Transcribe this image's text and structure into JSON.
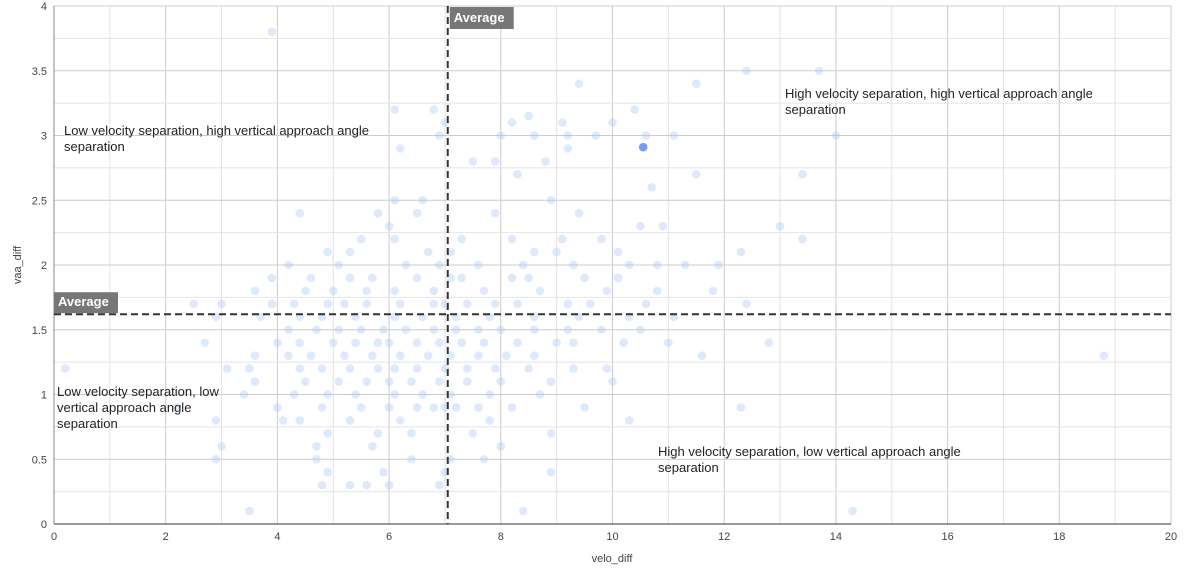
{
  "chart_data": {
    "type": "scatter",
    "xlabel": "velo_diff",
    "ylabel": "vaa_diff",
    "xlim": [
      0,
      20
    ],
    "ylim": [
      0,
      4
    ],
    "x_ticks": [
      "0",
      "2",
      "4",
      "6",
      "8",
      "10",
      "12",
      "14",
      "16",
      "18",
      "20"
    ],
    "y_ticks": [
      "0",
      "0.5",
      "1",
      "1.5",
      "2",
      "2.5",
      "3",
      "3.5",
      "4"
    ],
    "grid": true,
    "colors": {
      "point": "#a8c8f8",
      "highlight": "#5b8def",
      "average_line": "#333333",
      "average_label_bg": "#777777"
    },
    "averages": {
      "x": 7.05,
      "y": 1.62,
      "label": "Average"
    },
    "quadrant_labels": {
      "top_left": [
        "Low velocity separation, high vertical approach angle",
        "separation"
      ],
      "top_right": [
        "High velocity separation, high vertical approach angle",
        "separation"
      ],
      "bottom_left": [
        "Low velocity separation, low",
        "vertical approach angle",
        "separation"
      ],
      "bottom_right": [
        "High velocity separation, low vertical approach angle",
        "separation"
      ]
    },
    "highlight_point": [
      10.55,
      2.91
    ],
    "points": [
      [
        3.9,
        3.8
      ],
      [
        12.4,
        3.5
      ],
      [
        13.7,
        3.5
      ],
      [
        9.4,
        3.4
      ],
      [
        11.5,
        3.4
      ],
      [
        6.1,
        3.2
      ],
      [
        6.8,
        3.2
      ],
      [
        8.5,
        3.15
      ],
      [
        10.4,
        3.2
      ],
      [
        8.2,
        3.1
      ],
      [
        9.1,
        3.1
      ],
      [
        10.0,
        3.1
      ],
      [
        7.0,
        3.1
      ],
      [
        6.9,
        3.0
      ],
      [
        8.0,
        3.0
      ],
      [
        8.6,
        3.0
      ],
      [
        9.2,
        3.0
      ],
      [
        9.7,
        3.0
      ],
      [
        10.6,
        3.0
      ],
      [
        11.1,
        3.0
      ],
      [
        14.0,
        3.0
      ],
      [
        6.2,
        2.9
      ],
      [
        7.9,
        2.8
      ],
      [
        7.5,
        2.8
      ],
      [
        8.8,
        2.8
      ],
      [
        9.2,
        2.9
      ],
      [
        8.3,
        2.7
      ],
      [
        10.7,
        2.6
      ],
      [
        11.5,
        2.7
      ],
      [
        13.4,
        2.7
      ],
      [
        6.6,
        2.5
      ],
      [
        8.9,
        2.5
      ],
      [
        6.1,
        2.5
      ],
      [
        9.4,
        2.4
      ],
      [
        7.9,
        2.4
      ],
      [
        5.8,
        2.4
      ],
      [
        4.4,
        2.4
      ],
      [
        6.5,
        2.4
      ],
      [
        6.0,
        2.3
      ],
      [
        5.5,
        2.2
      ],
      [
        6.1,
        2.2
      ],
      [
        7.3,
        2.2
      ],
      [
        8.2,
        2.2
      ],
      [
        9.1,
        2.2
      ],
      [
        9.8,
        2.2
      ],
      [
        10.5,
        2.3
      ],
      [
        10.9,
        2.3
      ],
      [
        13.0,
        2.3
      ],
      [
        13.4,
        2.2
      ],
      [
        4.9,
        2.1
      ],
      [
        5.3,
        2.1
      ],
      [
        6.7,
        2.1
      ],
      [
        7.1,
        2.1
      ],
      [
        8.6,
        2.1
      ],
      [
        9.0,
        2.1
      ],
      [
        10.1,
        2.1
      ],
      [
        12.3,
        2.1
      ],
      [
        4.2,
        2.0
      ],
      [
        5.1,
        2.0
      ],
      [
        6.3,
        2.0
      ],
      [
        6.9,
        2.0
      ],
      [
        7.6,
        2.0
      ],
      [
        8.4,
        2.0
      ],
      [
        9.3,
        2.0
      ],
      [
        10.3,
        2.0
      ],
      [
        10.8,
        2.0
      ],
      [
        11.3,
        2.0
      ],
      [
        11.9,
        2.0
      ],
      [
        3.9,
        1.9
      ],
      [
        4.6,
        1.9
      ],
      [
        5.3,
        1.9
      ],
      [
        5.7,
        1.9
      ],
      [
        6.5,
        1.9
      ],
      [
        7.1,
        1.9
      ],
      [
        7.3,
        1.9
      ],
      [
        8.2,
        1.9
      ],
      [
        8.5,
        1.9
      ],
      [
        9.5,
        1.9
      ],
      [
        10.1,
        1.9
      ],
      [
        3.6,
        1.8
      ],
      [
        4.5,
        1.8
      ],
      [
        5.0,
        1.8
      ],
      [
        5.6,
        1.8
      ],
      [
        6.1,
        1.8
      ],
      [
        6.8,
        1.8
      ],
      [
        7.7,
        1.8
      ],
      [
        8.7,
        1.8
      ],
      [
        9.9,
        1.8
      ],
      [
        10.8,
        1.8
      ],
      [
        11.8,
        1.8
      ],
      [
        2.5,
        1.7
      ],
      [
        3.0,
        1.7
      ],
      [
        3.9,
        1.7
      ],
      [
        4.3,
        1.7
      ],
      [
        4.9,
        1.7
      ],
      [
        5.2,
        1.7
      ],
      [
        5.6,
        1.7
      ],
      [
        6.2,
        1.7
      ],
      [
        6.8,
        1.7
      ],
      [
        7.0,
        1.7
      ],
      [
        7.4,
        1.7
      ],
      [
        7.9,
        1.7
      ],
      [
        8.3,
        1.7
      ],
      [
        9.2,
        1.7
      ],
      [
        9.6,
        1.7
      ],
      [
        10.6,
        1.7
      ],
      [
        12.4,
        1.7
      ],
      [
        2.9,
        1.6
      ],
      [
        3.7,
        1.6
      ],
      [
        4.4,
        1.6
      ],
      [
        4.8,
        1.6
      ],
      [
        5.4,
        1.6
      ],
      [
        6.1,
        1.6
      ],
      [
        6.6,
        1.6
      ],
      [
        7.2,
        1.6
      ],
      [
        7.8,
        1.6
      ],
      [
        8.6,
        1.6
      ],
      [
        9.4,
        1.6
      ],
      [
        10.3,
        1.6
      ],
      [
        11.1,
        1.6
      ],
      [
        4.2,
        1.5
      ],
      [
        4.7,
        1.5
      ],
      [
        5.1,
        1.5
      ],
      [
        5.5,
        1.5
      ],
      [
        5.9,
        1.5
      ],
      [
        6.3,
        1.5
      ],
      [
        6.8,
        1.5
      ],
      [
        7.2,
        1.5
      ],
      [
        7.6,
        1.5
      ],
      [
        8.0,
        1.5
      ],
      [
        8.6,
        1.5
      ],
      [
        9.2,
        1.5
      ],
      [
        9.8,
        1.5
      ],
      [
        10.5,
        1.5
      ],
      [
        2.7,
        1.4
      ],
      [
        4.0,
        1.4
      ],
      [
        4.4,
        1.4
      ],
      [
        5.0,
        1.4
      ],
      [
        5.4,
        1.4
      ],
      [
        5.8,
        1.4
      ],
      [
        6.0,
        1.4
      ],
      [
        6.5,
        1.4
      ],
      [
        6.9,
        1.4
      ],
      [
        7.3,
        1.4
      ],
      [
        7.7,
        1.4
      ],
      [
        8.3,
        1.4
      ],
      [
        9.0,
        1.4
      ],
      [
        9.3,
        1.4
      ],
      [
        10.2,
        1.4
      ],
      [
        11.0,
        1.4
      ],
      [
        12.8,
        1.4
      ],
      [
        3.6,
        1.3
      ],
      [
        4.2,
        1.3
      ],
      [
        4.6,
        1.3
      ],
      [
        5.2,
        1.3
      ],
      [
        5.7,
        1.3
      ],
      [
        6.2,
        1.3
      ],
      [
        6.7,
        1.3
      ],
      [
        7.1,
        1.3
      ],
      [
        7.6,
        1.3
      ],
      [
        8.1,
        1.3
      ],
      [
        8.6,
        1.3
      ],
      [
        11.6,
        1.3
      ],
      [
        18.8,
        1.3
      ],
      [
        0.2,
        1.2
      ],
      [
        3.1,
        1.2
      ],
      [
        3.5,
        1.2
      ],
      [
        4.4,
        1.2
      ],
      [
        4.8,
        1.2
      ],
      [
        5.3,
        1.2
      ],
      [
        5.8,
        1.2
      ],
      [
        6.1,
        1.2
      ],
      [
        6.5,
        1.2
      ],
      [
        7.0,
        1.2
      ],
      [
        7.4,
        1.2
      ],
      [
        7.9,
        1.2
      ],
      [
        8.5,
        1.2
      ],
      [
        9.3,
        1.2
      ],
      [
        9.9,
        1.2
      ],
      [
        3.6,
        1.1
      ],
      [
        4.5,
        1.1
      ],
      [
        5.1,
        1.1
      ],
      [
        5.6,
        1.1
      ],
      [
        6.0,
        1.1
      ],
      [
        6.4,
        1.1
      ],
      [
        6.9,
        1.1
      ],
      [
        7.4,
        1.1
      ],
      [
        8.0,
        1.1
      ],
      [
        8.9,
        1.1
      ],
      [
        10.0,
        1.1
      ],
      [
        3.4,
        1.0
      ],
      [
        4.3,
        1.0
      ],
      [
        4.9,
        1.0
      ],
      [
        5.4,
        1.0
      ],
      [
        6.1,
        1.0
      ],
      [
        6.6,
        1.0
      ],
      [
        7.1,
        1.0
      ],
      [
        7.8,
        1.0
      ],
      [
        8.7,
        1.0
      ],
      [
        2.2,
        0.9
      ],
      [
        4.0,
        0.9
      ],
      [
        4.8,
        0.9
      ],
      [
        5.5,
        0.9
      ],
      [
        6.0,
        0.9
      ],
      [
        6.5,
        0.9
      ],
      [
        6.8,
        0.9
      ],
      [
        7.0,
        0.9
      ],
      [
        7.2,
        0.9
      ],
      [
        7.6,
        0.9
      ],
      [
        8.2,
        0.9
      ],
      [
        9.5,
        0.9
      ],
      [
        12.3,
        0.9
      ],
      [
        2.9,
        0.8
      ],
      [
        4.1,
        0.8
      ],
      [
        4.4,
        0.8
      ],
      [
        5.3,
        0.8
      ],
      [
        6.2,
        0.8
      ],
      [
        7.8,
        0.8
      ],
      [
        10.3,
        0.8
      ],
      [
        4.9,
        0.7
      ],
      [
        5.8,
        0.7
      ],
      [
        6.4,
        0.7
      ],
      [
        7.5,
        0.7
      ],
      [
        8.9,
        0.7
      ],
      [
        3.0,
        0.6
      ],
      [
        4.7,
        0.6
      ],
      [
        5.7,
        0.6
      ],
      [
        8.0,
        0.6
      ],
      [
        2.9,
        0.5
      ],
      [
        4.7,
        0.5
      ],
      [
        6.4,
        0.5
      ],
      [
        7.1,
        0.5
      ],
      [
        7.7,
        0.5
      ],
      [
        4.9,
        0.4
      ],
      [
        5.9,
        0.4
      ],
      [
        7.0,
        0.4
      ],
      [
        8.9,
        0.4
      ],
      [
        4.8,
        0.3
      ],
      [
        5.3,
        0.3
      ],
      [
        5.6,
        0.3
      ],
      [
        6.0,
        0.3
      ],
      [
        6.9,
        0.3
      ],
      [
        3.5,
        0.1
      ],
      [
        8.4,
        0.1
      ],
      [
        14.3,
        0.1
      ]
    ]
  }
}
